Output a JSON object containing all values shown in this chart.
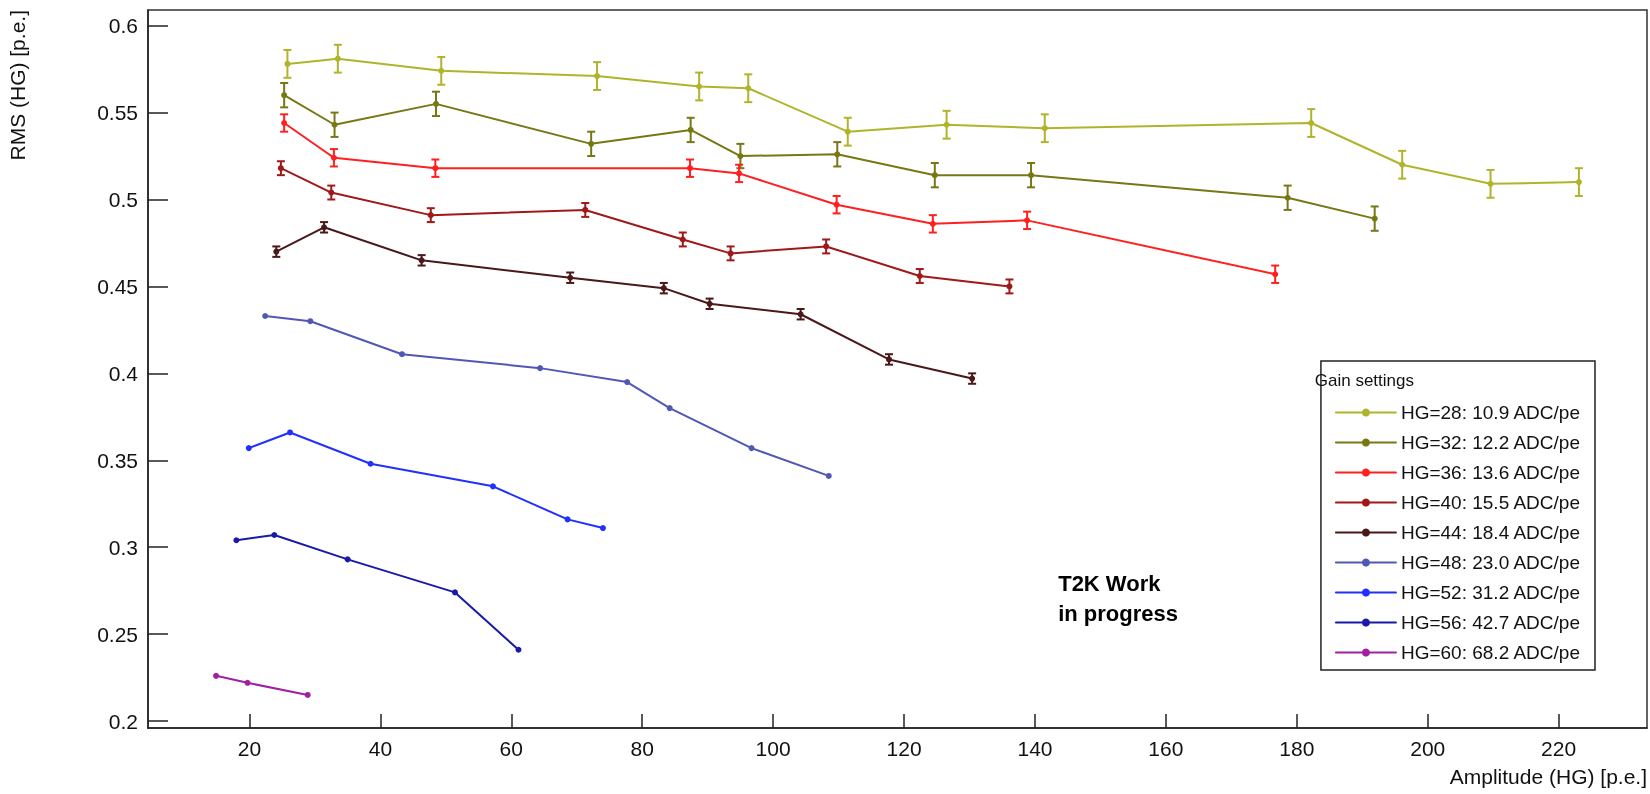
{
  "chart_data": {
    "type": "line",
    "xlabel": "Amplitude (HG) [p.e.]",
    "ylabel": "RMS (HG) [p.e.]",
    "legend_title": "Gain settings",
    "annotations": [
      "T2K Work\nin progress"
    ],
    "xlim": [
      4.5,
      233.5
    ],
    "xticks": [
      20,
      40,
      60,
      80,
      100,
      120,
      140,
      160,
      180,
      200,
      220
    ],
    "ylim": [
      0.196,
      0.609
    ],
    "yticks": [
      0.2,
      0.25,
      0.3,
      0.35,
      0.4,
      0.45,
      0.5,
      0.55,
      0.6
    ],
    "grid": false,
    "legend": "bottom right",
    "marker": "circle",
    "line_style": "solid",
    "series": [
      {
        "name": "HG=28: 10.9 ADC/pe",
        "color": "#b0b42a",
        "x": [
          25.8,
          33.5,
          49.3,
          73.1,
          88.7,
          96.2,
          111.4,
          126.5,
          141.5,
          182.2,
          196.1,
          209.6,
          223.1
        ],
        "values": [
          0.578,
          0.581,
          0.574,
          0.571,
          0.565,
          0.564,
          0.539,
          0.543,
          0.541,
          0.544,
          0.52,
          0.509,
          0.51
        ],
        "errors": [
          0.008,
          0.008,
          0.008,
          0.008,
          0.008,
          0.008,
          0.008,
          0.008,
          0.008,
          0.008,
          0.008,
          0.008,
          0.008
        ]
      },
      {
        "name": "HG=32: 12.2 ADC/pe",
        "color": "#777714",
        "x": [
          25.3,
          33.0,
          48.5,
          72.2,
          87.4,
          95.0,
          109.8,
          124.7,
          139.4,
          178.6,
          191.9
        ],
        "values": [
          0.56,
          0.543,
          0.555,
          0.532,
          0.54,
          0.525,
          0.526,
          0.514,
          0.514,
          0.501,
          0.489
        ],
        "errors": [
          0.007,
          0.007,
          0.007,
          0.007,
          0.007,
          0.007,
          0.007,
          0.007,
          0.007,
          0.007,
          0.007
        ]
      },
      {
        "name": "HG=36: 13.6 ADC/pe",
        "color": "#ff1f1f",
        "x": [
          25.3,
          32.9,
          48.4,
          87.3,
          94.8,
          109.7,
          124.4,
          138.8,
          176.7
        ],
        "values": [
          0.544,
          0.524,
          0.518,
          0.518,
          0.515,
          0.497,
          0.486,
          0.488,
          0.457
        ],
        "errors": [
          0.005,
          0.005,
          0.005,
          0.005,
          0.005,
          0.005,
          0.005,
          0.005,
          0.005
        ]
      },
      {
        "name": "HG=40: 15.5 ADC/pe",
        "color": "#a01818",
        "x": [
          24.8,
          32.5,
          47.7,
          71.3,
          86.2,
          93.5,
          108.1,
          122.4,
          136.1
        ],
        "values": [
          0.518,
          0.504,
          0.491,
          0.494,
          0.477,
          0.469,
          0.473,
          0.456,
          0.45
        ],
        "errors": [
          0.004,
          0.004,
          0.004,
          0.004,
          0.004,
          0.004,
          0.004,
          0.004,
          0.004
        ]
      },
      {
        "name": "HG=44: 18.4 ADC/pe",
        "color": "#4a1818",
        "x": [
          24.1,
          31.4,
          46.3,
          69.0,
          83.3,
          90.3,
          104.2,
          117.7,
          130.4
        ],
        "values": [
          0.47,
          0.484,
          0.465,
          0.455,
          0.449,
          0.44,
          0.434,
          0.408,
          0.397
        ],
        "errors": [
          0.003,
          0.003,
          0.003,
          0.003,
          0.003,
          0.003,
          0.003,
          0.003,
          0.003
        ]
      },
      {
        "name": "HG=48: 23.0 ADC/pe",
        "color": "#5058b4",
        "x": [
          22.4,
          29.3,
          43.3,
          64.4,
          77.7,
          84.2,
          96.7,
          108.5
        ],
        "values": [
          0.433,
          0.43,
          0.411,
          0.403,
          0.395,
          0.38,
          0.357,
          0.341
        ]
      },
      {
        "name": "HG=52: 31.2 ADC/pe",
        "color": "#2030ff",
        "x": [
          19.9,
          26.2,
          38.5,
          57.2,
          68.6,
          74.0
        ],
        "values": [
          0.357,
          0.366,
          0.348,
          0.335,
          0.316,
          0.311
        ]
      },
      {
        "name": "HG=56: 42.7 ADC/pe",
        "color": "#1a1aa8",
        "x": [
          18.0,
          23.8,
          35.0,
          51.4,
          61.1
        ],
        "values": [
          0.304,
          0.307,
          0.293,
          0.274,
          0.241
        ]
      },
      {
        "name": "HG=60: 68.2 ADC/pe",
        "color": "#a020a0",
        "x": [
          14.9,
          19.7,
          28.9
        ],
        "values": [
          0.226,
          0.222,
          0.215
        ]
      }
    ]
  }
}
